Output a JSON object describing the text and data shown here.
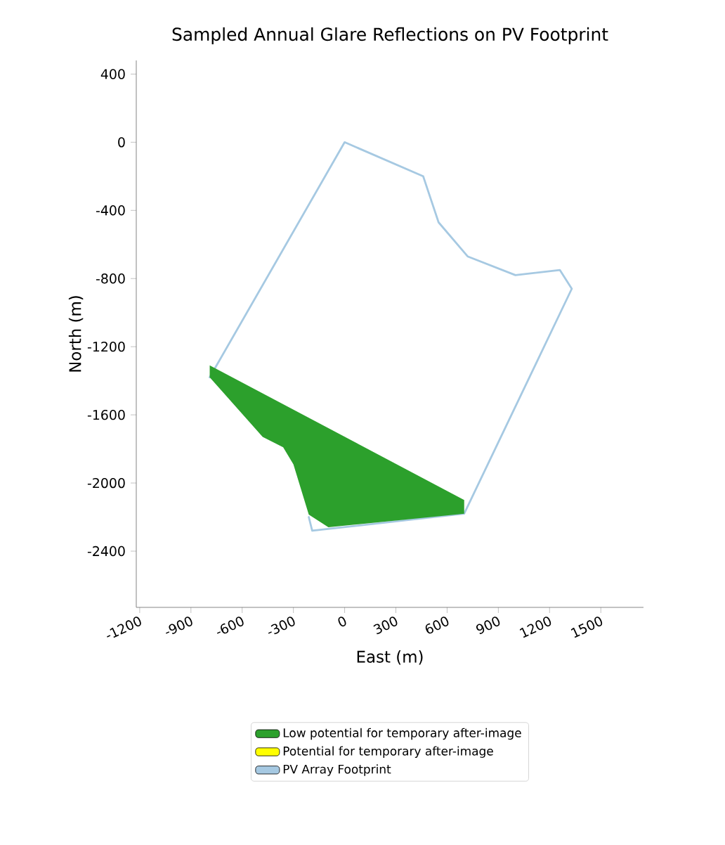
{
  "chart_data": {
    "type": "line",
    "title": "Sampled Annual Glare Reflections on PV Footprint",
    "xlabel": "East (m)",
    "ylabel": "North (m)",
    "xlim": [
      -1220,
      1750
    ],
    "ylim": [
      -2730,
      480
    ],
    "xticks": [
      -1200,
      -900,
      -600,
      -300,
      0,
      300,
      600,
      900,
      1200,
      1500
    ],
    "yticks": [
      400,
      0,
      -400,
      -800,
      -1200,
      -1600,
      -2000,
      -2400
    ],
    "legend": "bottom",
    "grid": false,
    "series": [
      {
        "name": "Low potential for temporary after-image",
        "type": "area",
        "color": "#2ca02c",
        "x": [
          -790,
          -790,
          -480,
          -360,
          -300,
          -210,
          -95,
          700,
          700
        ],
        "values": [
          -1310,
          -1380,
          -1730,
          -1790,
          -1890,
          -2185,
          -2260,
          -2180,
          -2100
        ]
      },
      {
        "name": "Potential for temporary after-image",
        "type": "area",
        "color": "#ffff00"
      },
      {
        "name": "PV Array Footprint",
        "color": "#a6c9e2",
        "x": [
          -210,
          -190,
          700,
          1330,
          1260,
          1000,
          720,
          550,
          460,
          0,
          -790
        ],
        "values": [
          -2200,
          -2280,
          -2180,
          -860,
          -750,
          -780,
          -670,
          -470,
          -200,
          0,
          -1380
        ]
      }
    ]
  }
}
